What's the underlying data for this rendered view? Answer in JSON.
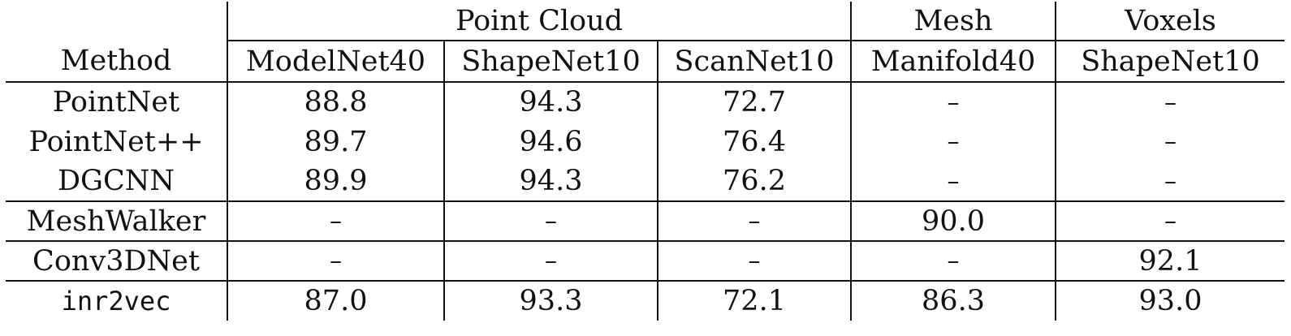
{
  "table": {
    "groups": [
      {
        "label": "Point Cloud",
        "span": 3
      },
      {
        "label": "Mesh",
        "span": 1
      },
      {
        "label": "Voxels",
        "span": 1
      }
    ],
    "columns": [
      "Method",
      "ModelNet40",
      "ShapeNet10",
      "ScanNet10",
      "Manifold40",
      "ShapeNet10"
    ],
    "rows": [
      {
        "method": "PointNet",
        "values": [
          "88.8",
          "94.3",
          "72.7",
          "–",
          "–"
        ],
        "line_after": false
      },
      {
        "method": "PointNet++",
        "values": [
          "89.7",
          "94.6",
          "76.4",
          "–",
          "–"
        ],
        "line_after": false
      },
      {
        "method": "DGCNN",
        "values": [
          "89.9",
          "94.3",
          "76.2",
          "–",
          "–"
        ],
        "line_after": true
      },
      {
        "method": "MeshWalker",
        "values": [
          "–",
          "–",
          "–",
          "90.0",
          "–"
        ],
        "line_after": true
      },
      {
        "method": "Conv3DNet",
        "values": [
          "–",
          "–",
          "–",
          "–",
          "92.1"
        ],
        "line_after": true
      },
      {
        "method": "inr2vec",
        "values": [
          "87.0",
          "93.3",
          "72.1",
          "86.3",
          "93.0"
        ],
        "line_after": false,
        "mono": true
      }
    ]
  }
}
